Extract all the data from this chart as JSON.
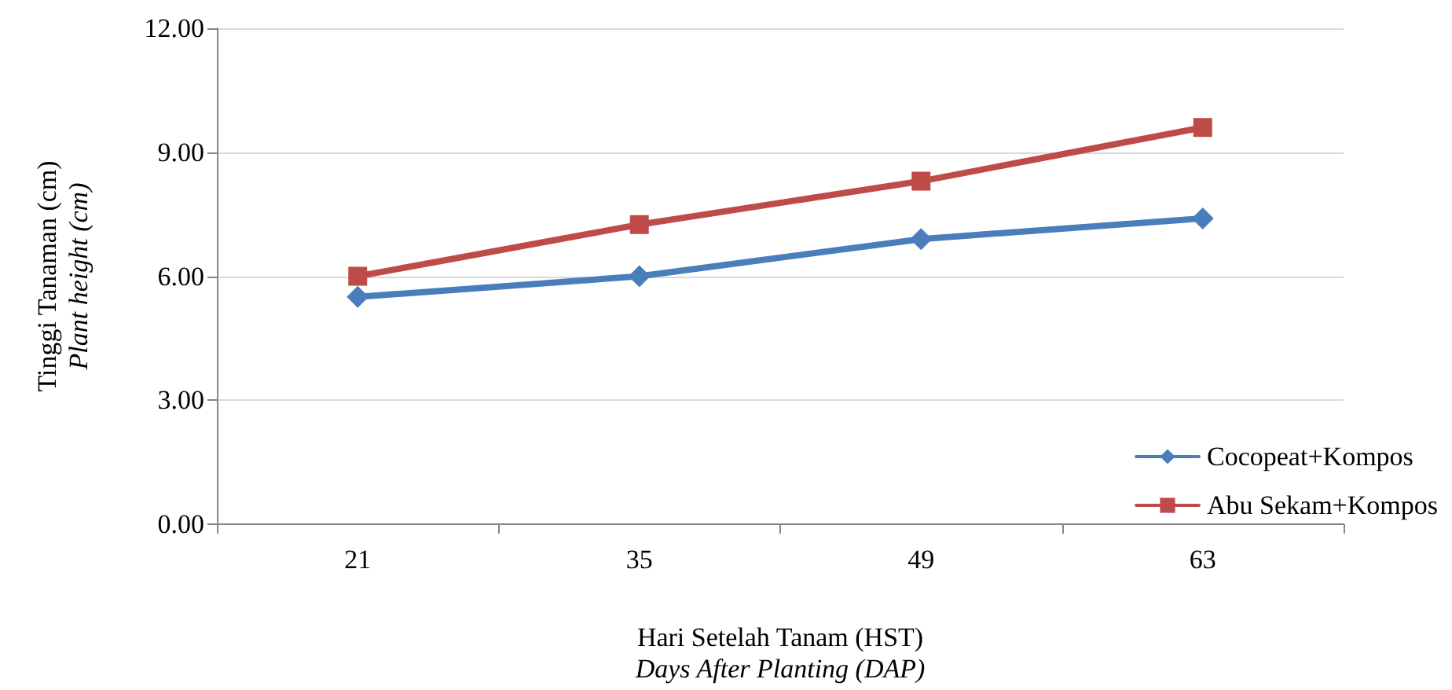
{
  "chart_data": {
    "type": "line",
    "xlabel": "Hari Setelah Tanam (HST)\nDays After Planting (DAP)",
    "ylabel": "Tinggi Tanaman (cm)\nPlant height (cm)",
    "categories": [
      "21",
      "35",
      "49",
      "63"
    ],
    "series": [
      {
        "name": "Cocopeat+Kompos",
        "color": "#4a7ebb",
        "marker": "diamond",
        "values": [
          5.5,
          6.0,
          6.9,
          7.4
        ]
      },
      {
        "name": "Abu Sekam+Kompos",
        "color": "#be4b48",
        "marker": "square",
        "values": [
          6.0,
          7.25,
          8.3,
          9.6
        ]
      }
    ],
    "ylim": [
      0,
      12
    ],
    "yticks": [
      {
        "value": 0,
        "label": "0.00"
      },
      {
        "value": 3,
        "label": "3.00"
      },
      {
        "value": 6,
        "label": "6.00"
      },
      {
        "value": 9,
        "label": "9.00"
      },
      {
        "value": 12,
        "label": "12.00"
      }
    ],
    "grid": "y",
    "legend": "bottom right",
    "line_style": "solid"
  }
}
